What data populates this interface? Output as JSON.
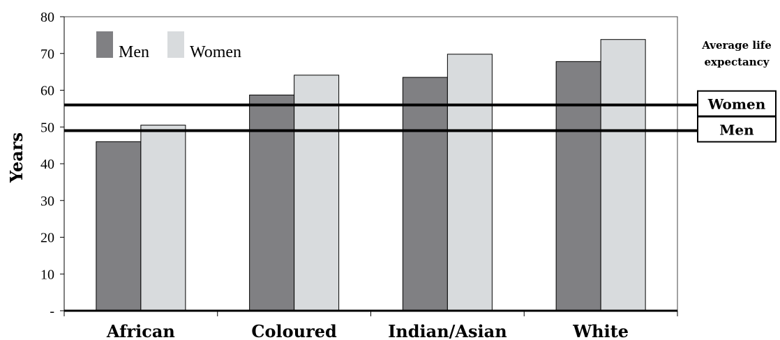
{
  "chart_data": {
    "type": "bar",
    "categories": [
      "African",
      "Coloured",
      "Indian/Asian",
      "White"
    ],
    "series": [
      {
        "name": "Men",
        "values": [
          46,
          58.7,
          63.5,
          67.8
        ],
        "color": "#808083"
      },
      {
        "name": "Women",
        "values": [
          50.5,
          64.1,
          69.8,
          73.8
        ],
        "color": "#d8dbdd"
      }
    ],
    "ylabel": "Years",
    "xlabel": "",
    "ylim": [
      0,
      80
    ],
    "yticks": [
      "-",
      "10",
      "20",
      "30",
      "40",
      "50",
      "60",
      "70",
      "80"
    ],
    "legend_position": "top-left",
    "reference_lines": {
      "title": "Average life expectancy",
      "items": [
        {
          "label": "Women",
          "value": 56
        },
        {
          "label": "Men",
          "value": 49
        }
      ]
    }
  }
}
